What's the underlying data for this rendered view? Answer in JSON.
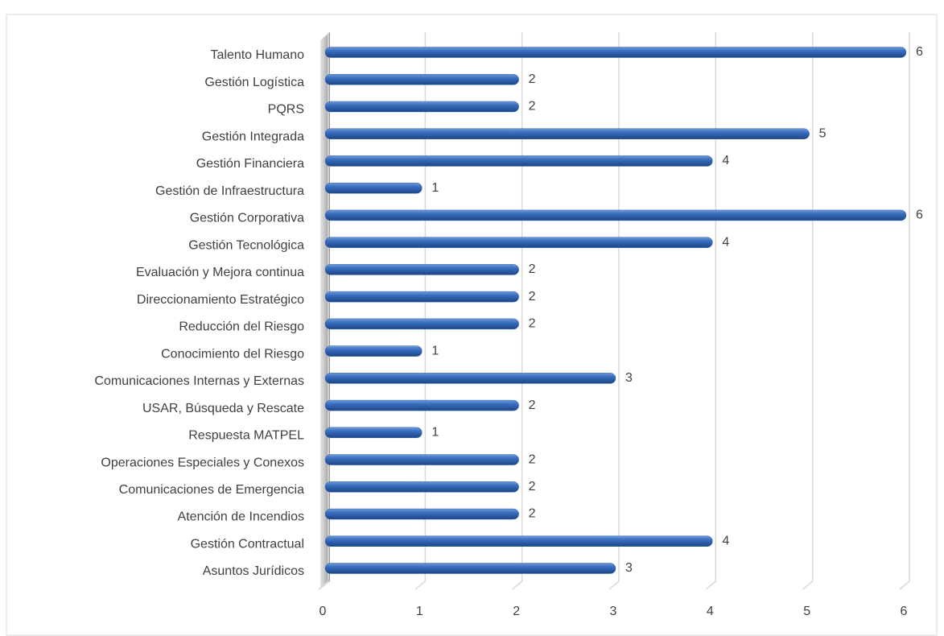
{
  "chart_data": {
    "type": "bar",
    "orientation": "horizontal",
    "categories": [
      "Talento Humano",
      "Gestión Logística",
      "PQRS",
      "Gestión Integrada",
      "Gestión Financiera",
      "Gestión de Infraestructura",
      "Gestión Corporativa",
      "Gestión Tecnológica",
      "Evaluación y Mejora continua",
      "Direccionamiento Estratégico",
      "Reducción del Riesgo",
      "Conocimiento del Riesgo",
      "Comunicaciones Internas y Externas",
      "USAR, Búsqueda y Rescate",
      "Respuesta MATPEL",
      "Operaciones Especiales y Conexos",
      "Comunicaciones de Emergencia",
      "Atención de Incendios",
      "Gestión Contractual",
      "Asuntos Jurídicos"
    ],
    "values": [
      6,
      2,
      2,
      5,
      4,
      1,
      6,
      4,
      2,
      2,
      2,
      1,
      3,
      2,
      1,
      2,
      2,
      2,
      4,
      3
    ],
    "color": "#2f62ad",
    "xlim": [
      0,
      6
    ],
    "xticks": [
      0,
      1,
      2,
      3,
      4,
      5,
      6
    ],
    "grid": true
  }
}
